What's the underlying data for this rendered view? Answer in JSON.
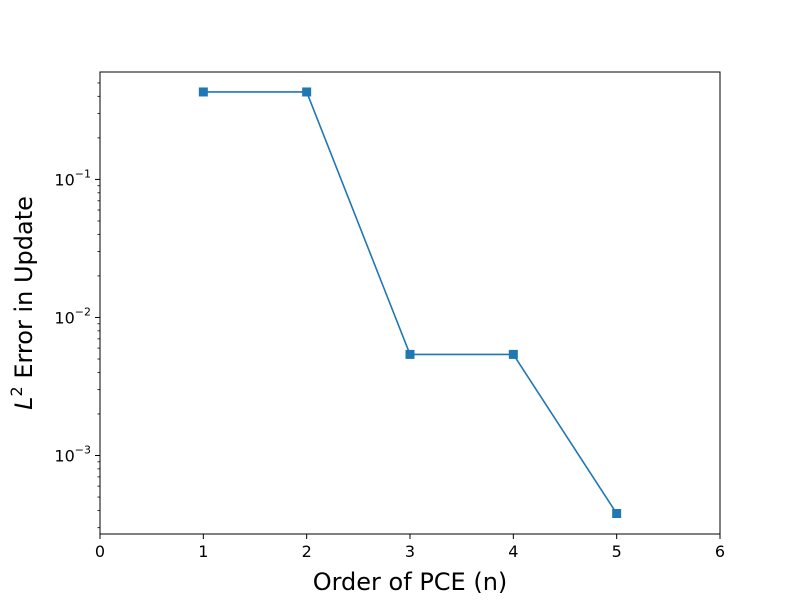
{
  "chart_data": {
    "type": "line",
    "title": "",
    "xlabel": "Order of PCE (n)",
    "ylabel": {
      "italic_var": "L",
      "superscript": "2",
      "rest": " Error in Update"
    },
    "x": [
      1,
      2,
      3,
      4,
      5
    ],
    "series": [
      {
        "values": [
          0.43,
          0.43,
          0.0054,
          0.0054,
          0.00038
        ],
        "color": "#1f77b4",
        "marker": "square"
      }
    ],
    "xlim": [
      0,
      6
    ],
    "xticks": [
      0,
      1,
      2,
      3,
      4,
      5,
      6
    ],
    "yscale": "log",
    "ylim": [
      0.00027,
      0.6
    ],
    "yticks": [
      {
        "value": 0.1,
        "base": "10",
        "exp": "−1"
      },
      {
        "value": 0.01,
        "base": "10",
        "exp": "−2"
      },
      {
        "value": 0.001,
        "base": "10",
        "exp": "−3"
      }
    ],
    "grid": false,
    "legend": "none"
  }
}
